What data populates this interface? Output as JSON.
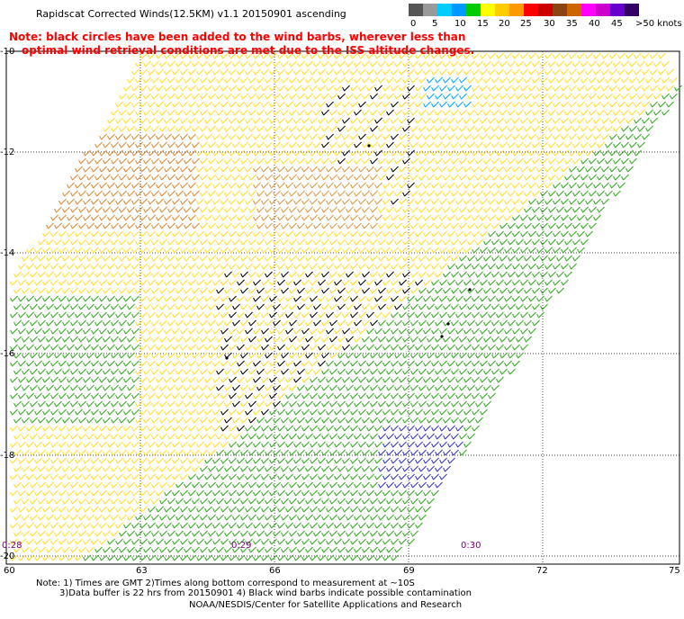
{
  "title": "Rapidscat Corrected Winds(12.5KM) v1.1 20150901 ascending",
  "note_line1": "Note: black circles have been added to the wind barbs, wherever less than",
  "note_line2": "optimal wind retrieval conditions are met due to the ISS altitude changes.",
  "colorbar": {
    "labels": [
      "0",
      "5",
      "10",
      "15",
      "20",
      "25",
      "30",
      "35",
      "40",
      "45",
      ">50 knots"
    ],
    "colors": [
      "#555555",
      "#999999",
      "#00ccff",
      "#0099ff",
      "#00cc00",
      "#ffff00",
      "#ffcc00",
      "#ff9900",
      "#ff0000",
      "#cc0000",
      "#8b4513",
      "#cc6600",
      "#ff00ff",
      "#cc00cc",
      "#6600cc",
      "#330066"
    ]
  },
  "latitude_labels": [
    "-10",
    "-12",
    "-14",
    "-16",
    "-18",
    "-20"
  ],
  "longitude_labels": [
    "60",
    "63",
    "66",
    "69",
    "72",
    "75"
  ],
  "time_labels": [
    "0:28",
    "0:29",
    "0:30"
  ],
  "footer": {
    "line1": "Note: 1) Times are GMT 2)Times along bottom correspond to measurement at ~10S",
    "line2": "3)Data buffer is 22 hrs from 20150901 4) Black wind barbs indicate possible contamination",
    "line3": "NOAA/NESDIS/Center for Satellite Applications and Research"
  }
}
